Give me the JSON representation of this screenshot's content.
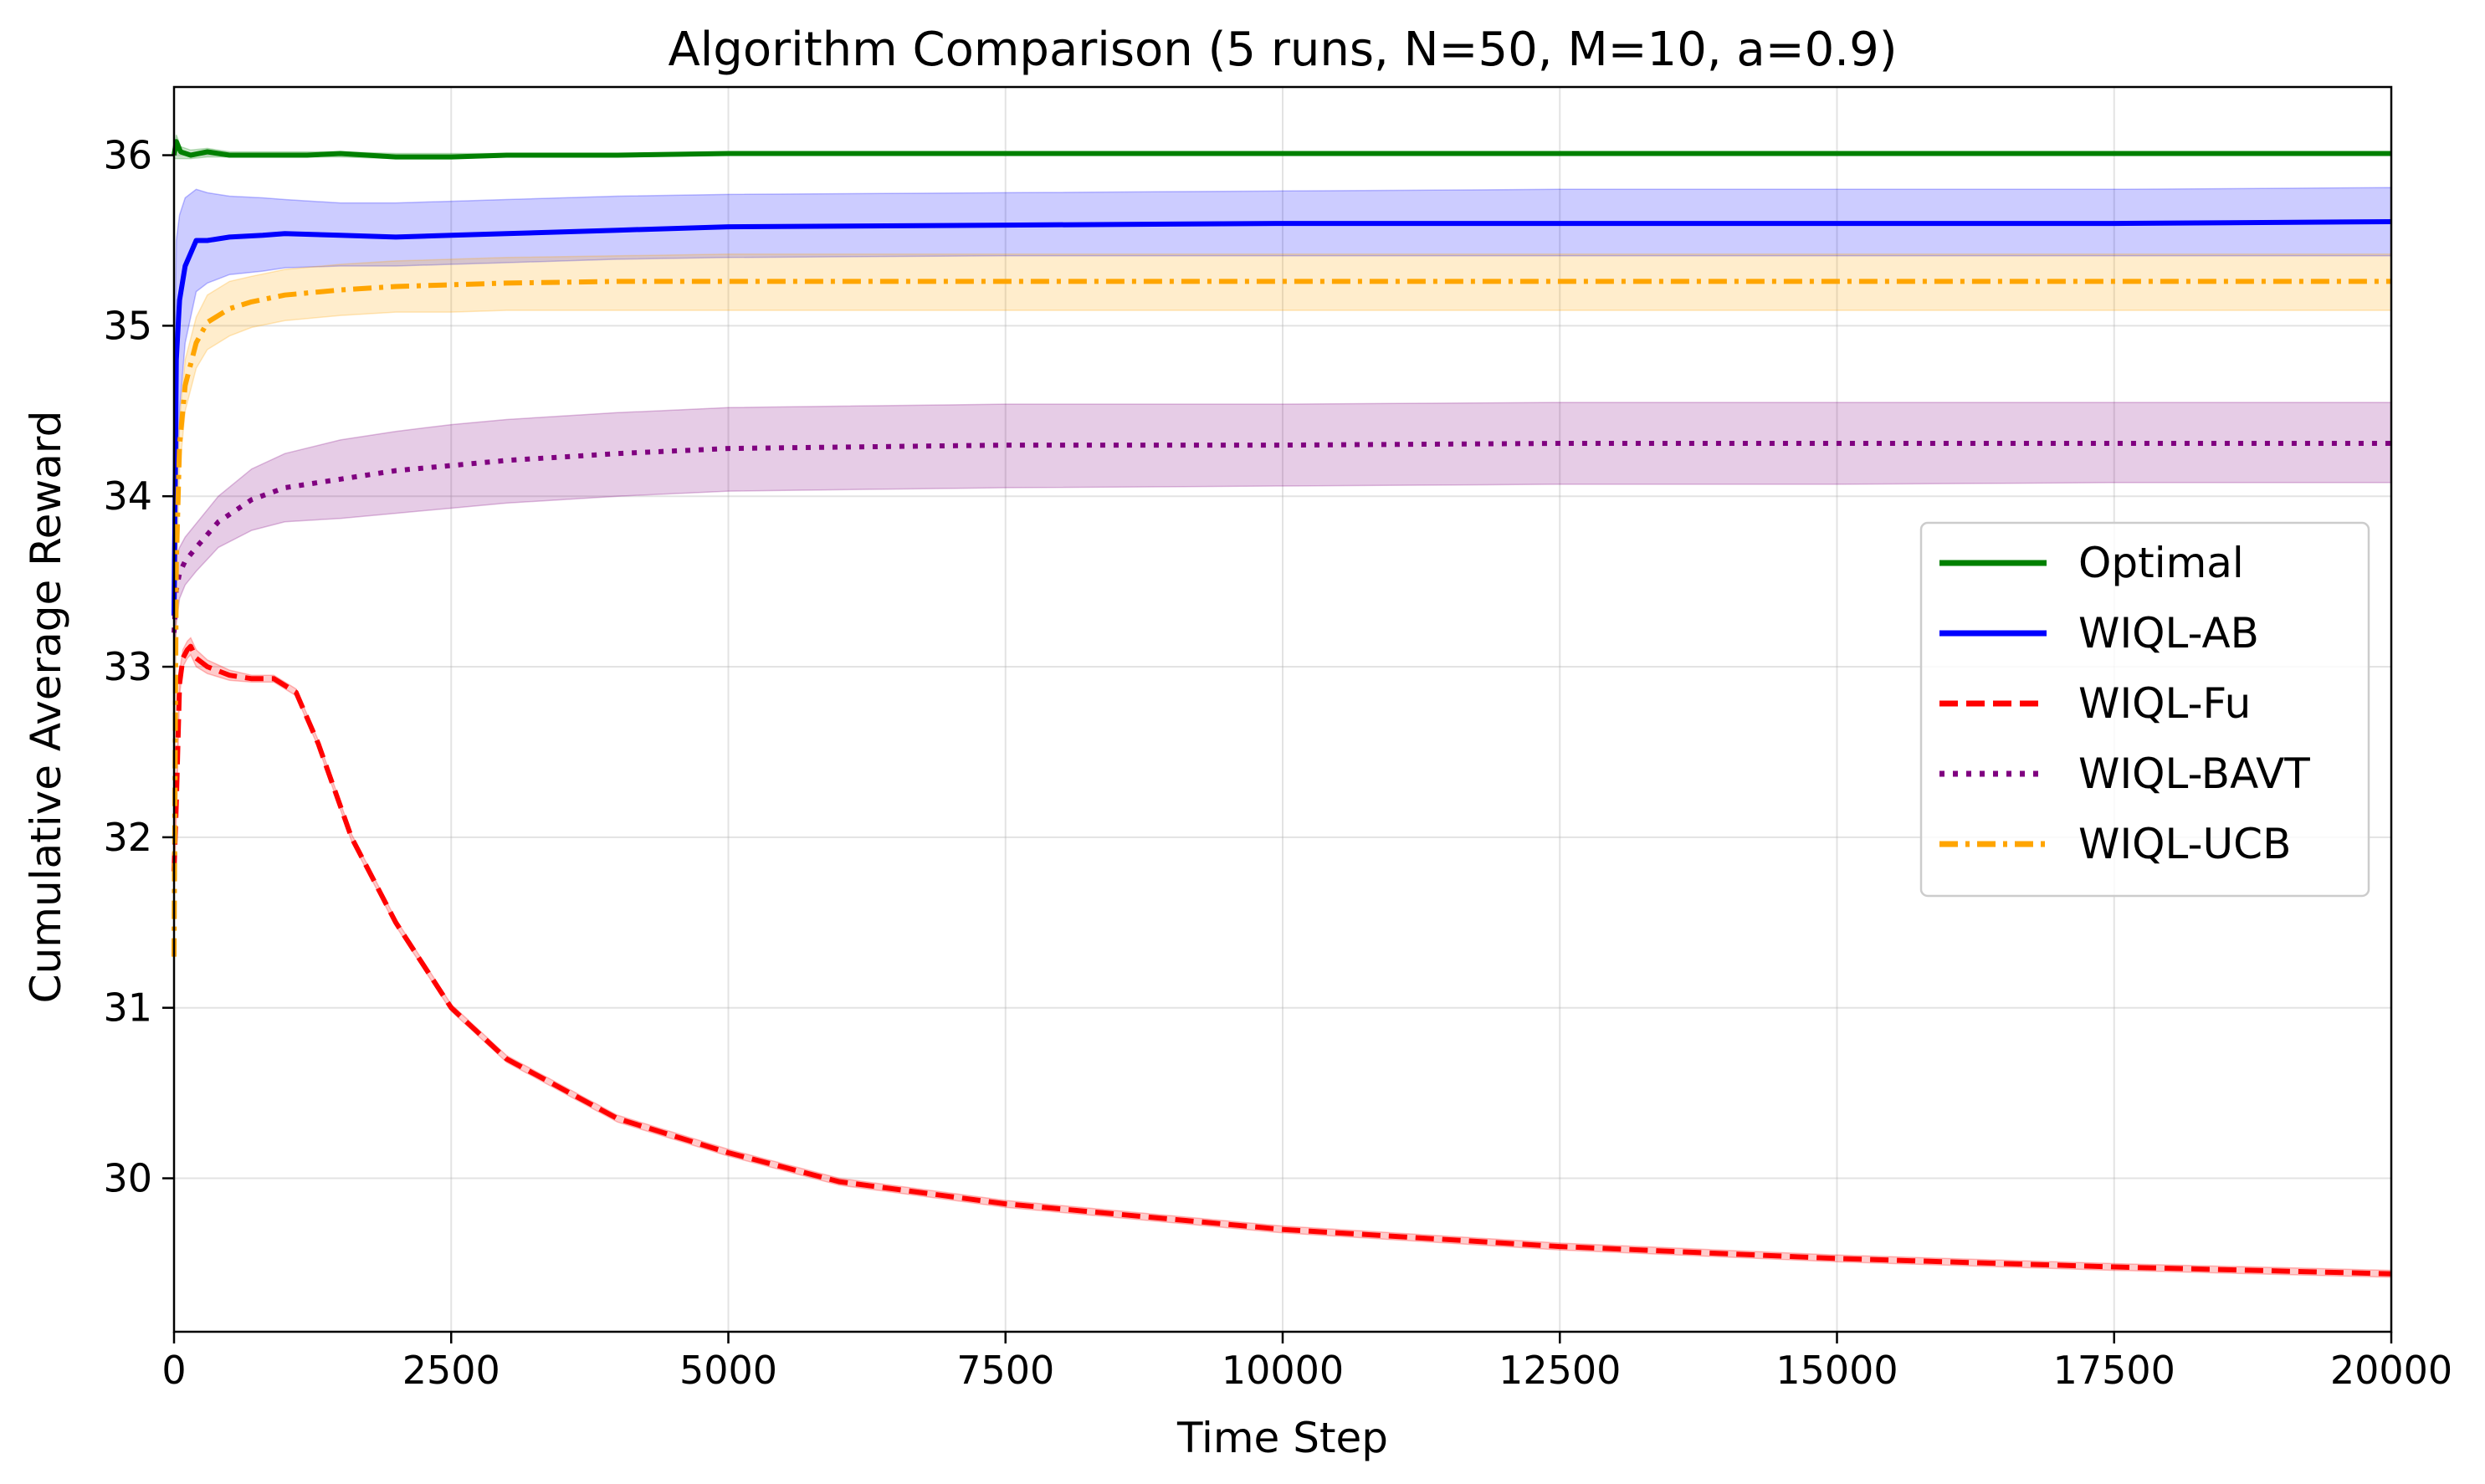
{
  "chart_data": {
    "type": "line",
    "title": "Algorithm Comparison (5 runs, N=50, M=10, a=0.9)",
    "xlabel": "Time Step",
    "ylabel": "Cumulative Average Reward",
    "xlim": [
      0,
      20000
    ],
    "ylim": [
      29.1,
      36.4
    ],
    "xticks": [
      0,
      2500,
      5000,
      7500,
      10000,
      12500,
      15000,
      17500,
      20000
    ],
    "yticks": [
      30,
      31,
      32,
      33,
      34,
      35,
      36
    ],
    "grid": true,
    "legend_position": "center-right",
    "series": [
      {
        "name": "Optimal",
        "color": "#008000",
        "style": "solid",
        "band_color": "#008000",
        "x": [
          0,
          20,
          60,
          150,
          300,
          500,
          800,
          1200,
          1500,
          2000,
          2500,
          3000,
          4000,
          5000,
          7500,
          10000,
          12500,
          15000,
          17500,
          20000
        ],
        "y": [
          36.0,
          36.08,
          36.02,
          36.0,
          36.02,
          36.0,
          36.0,
          36.0,
          36.01,
          35.99,
          35.99,
          36.0,
          36.0,
          36.01,
          36.01,
          36.01,
          36.01,
          36.01,
          36.01,
          36.01
        ],
        "lower": [
          35.98,
          35.98,
          35.98,
          35.98,
          35.99,
          35.99,
          35.99,
          35.99,
          35.99,
          35.98,
          35.98,
          35.99,
          35.99,
          36.0,
          36.0,
          36.0,
          36.0,
          36.0,
          36.0,
          36.0
        ],
        "upper": [
          36.02,
          36.12,
          36.05,
          36.03,
          36.04,
          36.02,
          36.02,
          36.02,
          36.02,
          36.01,
          36.01,
          36.01,
          36.01,
          36.02,
          36.02,
          36.02,
          36.02,
          36.02,
          36.02,
          36.02
        ]
      },
      {
        "name": "WIQL-AB",
        "color": "#0000ff",
        "style": "solid",
        "band_color": "#0000ff",
        "x": [
          0,
          20,
          50,
          100,
          200,
          300,
          500,
          800,
          1000,
          1500,
          2000,
          2500,
          3000,
          4000,
          5000,
          7500,
          10000,
          12500,
          15000,
          17500,
          20000
        ],
        "y": [
          33.3,
          34.8,
          35.15,
          35.35,
          35.5,
          35.5,
          35.52,
          35.53,
          35.54,
          35.53,
          35.52,
          35.53,
          35.54,
          35.56,
          35.58,
          35.59,
          35.6,
          35.6,
          35.6,
          35.6,
          35.61
        ],
        "lower": [
          32.3,
          33.9,
          34.5,
          34.9,
          35.2,
          35.25,
          35.3,
          35.32,
          35.34,
          35.35,
          35.35,
          35.36,
          35.37,
          35.39,
          35.4,
          35.41,
          35.41,
          35.41,
          35.41,
          35.41,
          35.41
        ],
        "upper": [
          34.3,
          35.5,
          35.65,
          35.75,
          35.8,
          35.78,
          35.76,
          35.75,
          35.74,
          35.72,
          35.72,
          35.73,
          35.74,
          35.76,
          35.77,
          35.78,
          35.79,
          35.8,
          35.8,
          35.8,
          35.81
        ]
      },
      {
        "name": "WIQL-Fu",
        "color": "#ff0000",
        "style": "dashed",
        "band_color": "#ff0000",
        "x": [
          0,
          20,
          50,
          80,
          120,
          150,
          200,
          300,
          500,
          700,
          900,
          1100,
          1300,
          1600,
          2000,
          2500,
          3000,
          4000,
          5000,
          6000,
          7500,
          10000,
          12500,
          15000,
          17500,
          20000
        ],
        "y": [
          31.8,
          32.2,
          32.9,
          33.05,
          33.1,
          33.12,
          33.05,
          33.0,
          32.95,
          32.93,
          32.93,
          32.85,
          32.55,
          32.0,
          31.5,
          31.0,
          30.7,
          30.35,
          30.15,
          29.98,
          29.85,
          29.7,
          29.6,
          29.53,
          29.48,
          29.44
        ],
        "lower": [
          31.7,
          32.1,
          32.83,
          33.0,
          33.05,
          33.07,
          33.0,
          32.96,
          32.92,
          32.91,
          32.91,
          32.83,
          32.53,
          31.98,
          31.48,
          30.98,
          30.68,
          30.33,
          30.13,
          29.96,
          29.83,
          29.68,
          29.58,
          29.51,
          29.46,
          29.42
        ],
        "upper": [
          31.9,
          32.3,
          32.97,
          33.1,
          33.15,
          33.17,
          33.1,
          33.04,
          32.98,
          32.95,
          32.95,
          32.87,
          32.57,
          32.02,
          31.52,
          31.02,
          30.72,
          30.37,
          30.17,
          30.0,
          29.87,
          29.72,
          29.62,
          29.55,
          29.5,
          29.46
        ]
      },
      {
        "name": "WIQL-BAVT",
        "color": "#800080",
        "style": "dotted",
        "band_color": "#800080",
        "x": [
          0,
          20,
          50,
          100,
          200,
          400,
          700,
          1000,
          1500,
          2000,
          2500,
          3000,
          4000,
          5000,
          7500,
          10000,
          12500,
          15000,
          17500,
          20000
        ],
        "y": [
          33.2,
          33.45,
          33.55,
          33.62,
          33.7,
          33.85,
          33.98,
          34.05,
          34.1,
          34.15,
          34.18,
          34.21,
          34.25,
          34.28,
          34.3,
          34.3,
          34.31,
          34.31,
          34.31,
          34.31
        ],
        "lower": [
          33.0,
          33.25,
          33.4,
          33.48,
          33.56,
          33.7,
          33.8,
          33.85,
          33.87,
          33.9,
          33.93,
          33.96,
          34.0,
          34.03,
          34.05,
          34.06,
          34.07,
          34.07,
          34.08,
          34.08
        ],
        "upper": [
          33.4,
          33.65,
          33.7,
          33.76,
          33.84,
          34.0,
          34.16,
          34.25,
          34.33,
          34.38,
          34.42,
          34.45,
          34.49,
          34.52,
          34.54,
          34.54,
          34.55,
          34.55,
          34.55,
          34.55
        ]
      },
      {
        "name": "WIQL-UCB",
        "color": "#ffa500",
        "style": "dashdot",
        "band_color": "#ffa500",
        "x": [
          0,
          20,
          50,
          100,
          200,
          300,
          500,
          700,
          1000,
          1500,
          2000,
          2500,
          3000,
          4000,
          5000,
          7500,
          10000,
          12500,
          15000,
          17500,
          20000
        ],
        "y": [
          31.3,
          33.6,
          34.3,
          34.65,
          34.9,
          35.02,
          35.1,
          35.14,
          35.18,
          35.21,
          35.23,
          35.24,
          35.25,
          35.26,
          35.26,
          35.26,
          35.26,
          35.26,
          35.26,
          35.26,
          35.26
        ],
        "lower": [
          31.2,
          33.4,
          34.15,
          34.5,
          34.75,
          34.86,
          34.94,
          34.99,
          35.03,
          35.06,
          35.08,
          35.08,
          35.09,
          35.09,
          35.09,
          35.09,
          35.09,
          35.09,
          35.09,
          35.09,
          35.09
        ],
        "upper": [
          31.4,
          33.8,
          34.45,
          34.8,
          35.05,
          35.18,
          35.26,
          35.29,
          35.33,
          35.36,
          35.38,
          35.39,
          35.4,
          35.41,
          35.42,
          35.42,
          35.42,
          35.42,
          35.42,
          35.42,
          35.42
        ]
      }
    ]
  }
}
